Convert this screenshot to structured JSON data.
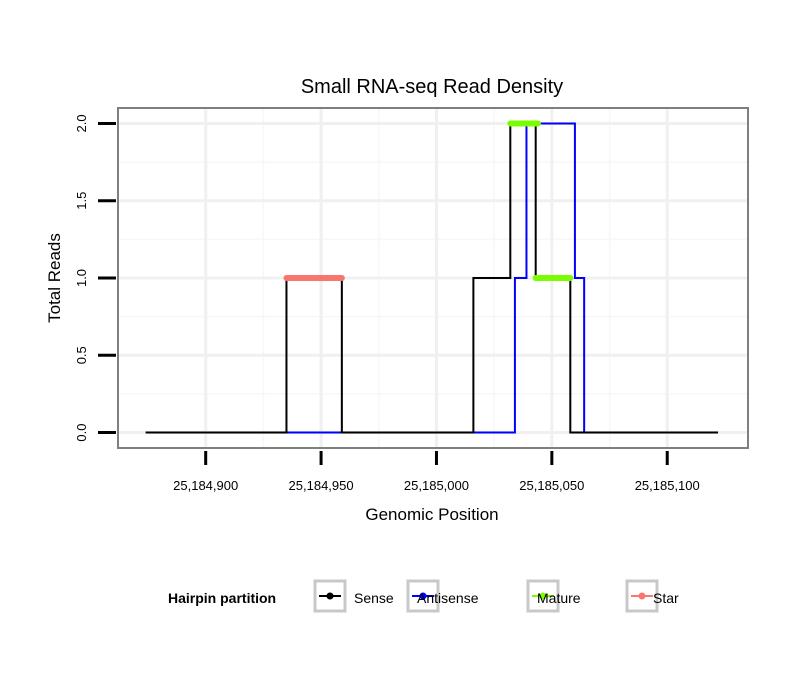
{
  "chart_data": {
    "type": "line",
    "title": "Small RNA-seq Read Density",
    "xlabel": "Genomic Position",
    "ylabel": "Total Reads",
    "xlim": [
      25184862,
      25185135
    ],
    "ylim": [
      -0.1,
      2.1
    ],
    "xticks": [
      25184900,
      25184950,
      25185000,
      25185050,
      25185100
    ],
    "xtick_labels": [
      "25,184,900",
      "25,184,950",
      "25,185,000",
      "25,185,050",
      "25,185,100"
    ],
    "yticks": [
      0,
      0.5,
      1,
      1.5,
      2
    ],
    "ytick_labels": [
      "0.0",
      "0.5",
      "1.0",
      "1.5",
      "2.0"
    ],
    "grid": true,
    "legend": {
      "title": "Hairpin partition",
      "placement": "bottom",
      "entries": [
        "Sense",
        "Antisense",
        "Mature",
        "Star"
      ]
    },
    "series": [
      {
        "name": "Antisense",
        "color": "#0000ff",
        "width": 2,
        "points": [
          [
            25184874,
            0
          ],
          [
            25185034,
            0
          ],
          [
            25185034,
            1
          ],
          [
            25185039,
            1
          ],
          [
            25185039,
            2
          ],
          [
            25185060,
            2
          ],
          [
            25185060,
            1
          ],
          [
            25185064,
            1
          ],
          [
            25185064,
            0
          ],
          [
            25185122,
            0
          ]
        ]
      },
      {
        "name": "Sense",
        "color": "#000000",
        "width": 2,
        "points": [
          [
            25184874,
            0
          ],
          [
            25184935,
            0
          ],
          [
            25184935,
            1
          ],
          [
            25184959,
            1
          ],
          [
            25184959,
            0
          ],
          [
            25185016,
            0
          ],
          [
            25185016,
            1
          ],
          [
            25185032,
            1
          ],
          [
            25185032,
            2
          ],
          [
            25185043,
            2
          ],
          [
            25185043,
            1
          ],
          [
            25185058,
            1
          ],
          [
            25185058,
            0
          ],
          [
            25185122,
            0
          ]
        ]
      },
      {
        "name": "Star",
        "color": "#f8766d",
        "width": 6,
        "segments": [
          [
            [
              25184935,
              1
            ],
            [
              25184959,
              1
            ]
          ]
        ]
      },
      {
        "name": "Mature",
        "color": "#7cfc00",
        "width": 6,
        "segments": [
          [
            [
              25185032,
              2
            ],
            [
              25185044,
              2
            ]
          ],
          [
            [
              25185043,
              1
            ],
            [
              25185058,
              1
            ]
          ]
        ]
      }
    ]
  }
}
